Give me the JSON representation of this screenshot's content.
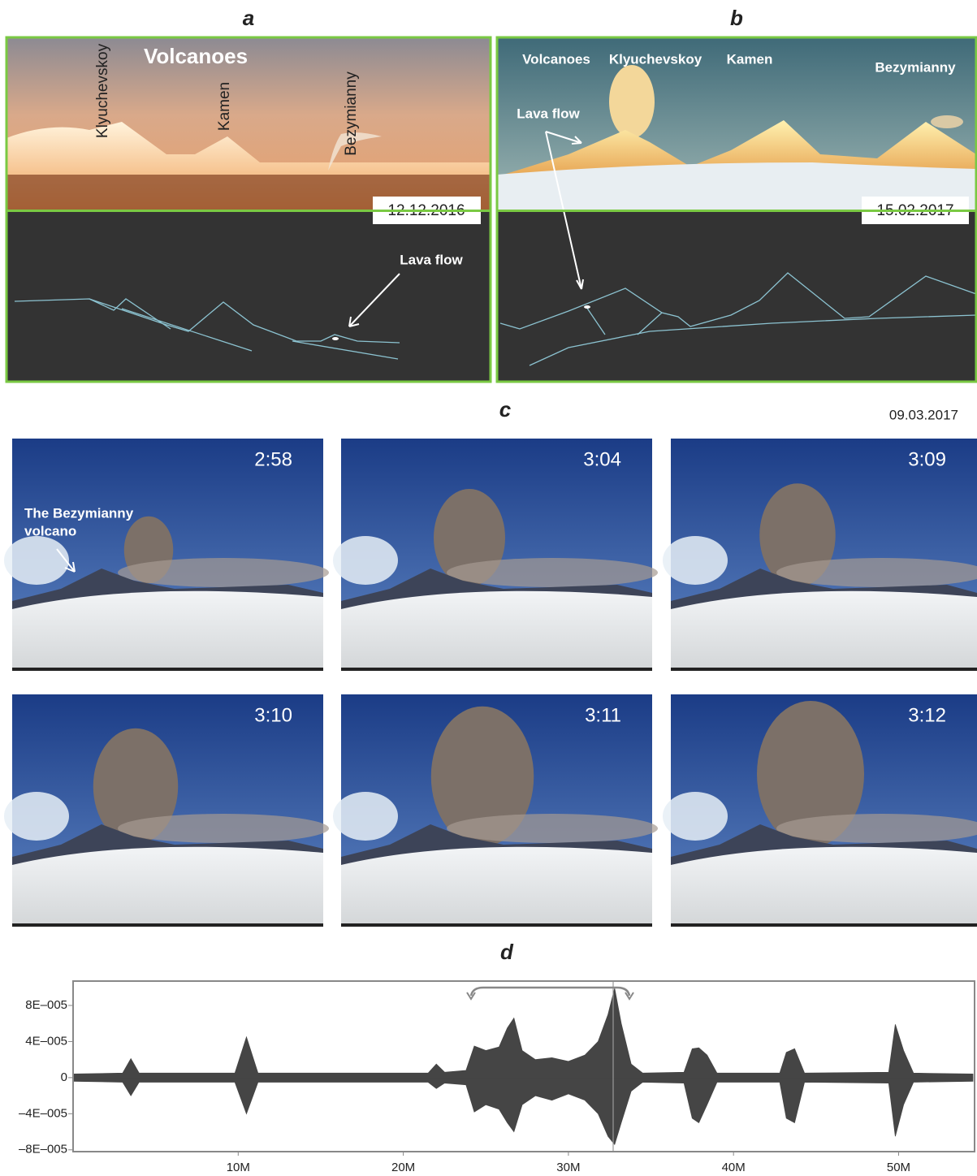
{
  "panel_a": {
    "letter": "a",
    "title": "Volcanoes",
    "labels": [
      "Klyuchevskoy",
      "Kamen",
      "Bezymianny"
    ],
    "date": "12.12.2016",
    "annotation": "Lava flow"
  },
  "panel_b": {
    "letter": "b",
    "labels": [
      "Volcanoes",
      "Klyuchevskoy",
      "Kamen",
      "Bezymianny"
    ],
    "annotation": "Lava flow",
    "date": "15.02.2017"
  },
  "panel_c": {
    "letter": "c",
    "date": "09.03.2017",
    "annotation": [
      "The Bezymianny",
      "volcano"
    ],
    "times": [
      "2:58",
      "3:04",
      "3:09",
      "3:10",
      "3:11",
      "3:12"
    ]
  },
  "chart_data": {
    "type": "area",
    "title": "d",
    "x": [
      0,
      3,
      3.5,
      4,
      9.8,
      10.5,
      11.2,
      21.5,
      22,
      22.5,
      23.8,
      24.3,
      25,
      25.8,
      26.3,
      26.7,
      27.2,
      28,
      29,
      30,
      31,
      31.8,
      32.4,
      32.8,
      33.2,
      33.8,
      34.5,
      37,
      37.5,
      37.9,
      38.4,
      39,
      42.8,
      43.2,
      43.7,
      44.3,
      49.4,
      49.8,
      50.3,
      50.9,
      54.5
    ],
    "series": [
      {
        "color": "#454545",
        "values": [
          4e-06,
          5e-06,
          2.1e-05,
          5e-06,
          5e-06,
          4.5e-05,
          5e-06,
          5e-06,
          1.5e-05,
          6e-06,
          8e-06,
          3.5e-05,
          3e-05,
          3.4e-05,
          5.5e-05,
          6.6e-05,
          3e-05,
          2e-05,
          2.2e-05,
          1.8e-05,
          2.5e-05,
          4e-05,
          7e-05,
          9.9e-05,
          6e-05,
          1.5e-05,
          5e-06,
          6e-06,
          3.2e-05,
          3.3e-05,
          2.5e-05,
          5e-06,
          5e-06,
          2.8e-05,
          3.2e-05,
          5e-06,
          6e-06,
          5.9e-05,
          3e-05,
          5e-06,
          4e-06
        ]
      },
      {
        "color": "#454545",
        "values": [
          -4e-06,
          -5e-06,
          -2e-05,
          -5e-06,
          -5e-06,
          -4e-05,
          -5e-06,
          -5e-06,
          -1.2e-05,
          -6e-06,
          -8e-06,
          -3.8e-05,
          -3e-05,
          -3.5e-05,
          -5e-05,
          -6e-05,
          -3e-05,
          -2e-05,
          -2.5e-05,
          -1.8e-05,
          -2.5e-05,
          -4e-05,
          -6.5e-05,
          -7.4e-05,
          -5e-05,
          -1.5e-05,
          -5e-06,
          -6e-06,
          -4.5e-05,
          -5e-05,
          -3e-05,
          -5e-06,
          -5e-06,
          -4.5e-05,
          -5e-05,
          -5e-06,
          -6e-06,
          -6.5e-05,
          -3e-05,
          -5e-06,
          -4e-06
        ]
      }
    ],
    "xlim": [
      0,
      54.6
    ],
    "ylim": [
      -8.2e-05,
      0.000107
    ],
    "xticks": [
      {
        "value": 10,
        "label": "10M"
      },
      {
        "value": 20,
        "label": "20M"
      },
      {
        "value": 30,
        "label": "30M"
      },
      {
        "value": 40,
        "label": "40M"
      },
      {
        "value": 50,
        "label": "50M"
      }
    ],
    "yticks": [
      {
        "value": 8e-05,
        "label": "8E–005"
      },
      {
        "value": 4e-05,
        "label": "4E–005"
      },
      0,
      {
        "value": -4e-05,
        "label": "–4E–005"
      },
      {
        "value": -8e-05,
        "label": "–8E–005"
      }
    ]
  }
}
